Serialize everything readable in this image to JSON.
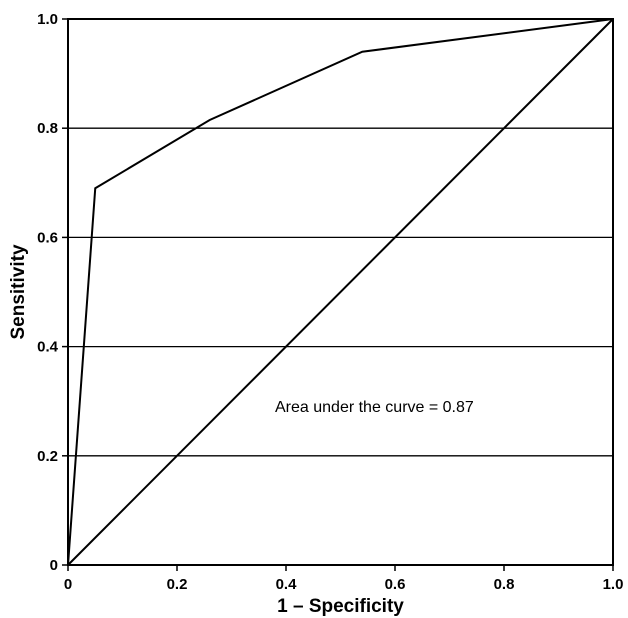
{
  "chart_data": {
    "type": "line",
    "title": "",
    "xlabel": "1 – Specificity",
    "ylabel": "Sensitivity",
    "xlim": [
      0,
      1
    ],
    "ylim": [
      0,
      1
    ],
    "x_ticks": [
      0,
      0.2,
      0.4,
      0.6,
      0.8,
      1.0
    ],
    "x_tick_labels": [
      "0",
      "0.2",
      "0.4",
      "0.6",
      "0.8",
      "1.0"
    ],
    "y_ticks": [
      0,
      0.2,
      0.4,
      0.6,
      0.8,
      1.0
    ],
    "y_tick_labels": [
      "0",
      "0.2",
      "0.4",
      "0.6",
      "0.8",
      "1.0"
    ],
    "grid": "horizontal",
    "series": [
      {
        "x": [
          0,
          0.05,
          0.26,
          0.54,
          1.0
        ],
        "y": [
          0,
          0.69,
          0.815,
          0.94,
          1.0
        ]
      },
      {
        "x": [
          0,
          1
        ],
        "y": [
          0,
          1
        ]
      }
    ],
    "annotation": "Area under the curve = 0.87"
  }
}
